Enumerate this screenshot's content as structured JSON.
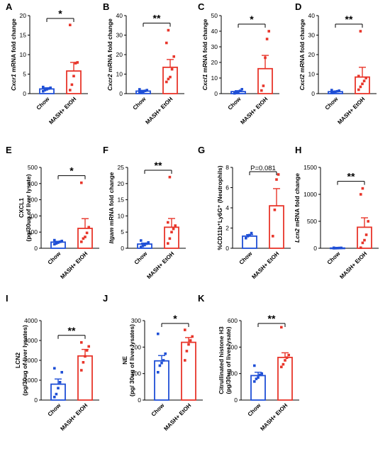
{
  "colors": {
    "chow": "#1f4fd6",
    "mash": "#e8352a",
    "axis": "#000000"
  },
  "categories": [
    "Chow",
    "MASH+ EtOH"
  ],
  "chart_data": [
    {
      "letter": "A",
      "type": "bar",
      "ylabel": {
        "gene": "Cxcr1",
        "rest": " mRNA fold change"
      },
      "ylim": [
        0,
        20
      ],
      "yticks": [
        "0",
        "5",
        "10",
        "15",
        "20"
      ],
      "sig": "*",
      "bars": [
        1.2,
        5.8
      ],
      "errors": [
        0.3,
        2.2
      ],
      "points": [
        [
          0.6,
          0.9,
          1.1,
          1.3,
          1.5,
          1.7
        ],
        [
          0.9,
          2.3,
          4.5,
          7.8,
          8.0,
          17.6
        ]
      ]
    },
    {
      "letter": "B",
      "type": "bar",
      "ylabel": {
        "gene": "Cxcr2",
        "rest": " mRNA fold change"
      },
      "ylim": [
        0,
        40
      ],
      "yticks": [
        "0",
        "10",
        "20",
        "30",
        "40"
      ],
      "sig": "**",
      "bars": [
        1.3,
        13.5
      ],
      "errors": [
        0.4,
        4.0
      ],
      "points": [
        [
          0.5,
          0.8,
          1.0,
          1.4,
          1.8,
          2.2
        ],
        [
          6.0,
          7.5,
          8.5,
          12.5,
          19.0,
          26.0,
          32.5
        ]
      ]
    },
    {
      "letter": "C",
      "type": "bar",
      "ylabel": {
        "gene": "Cxcl1",
        "rest": " mRNA fold change"
      },
      "ylim": [
        0,
        50
      ],
      "yticks": [
        "0",
        "10",
        "20",
        "30",
        "40",
        "50"
      ],
      "sig": "*",
      "bars": [
        1.3,
        16.0
      ],
      "errors": [
        0.6,
        8.5
      ],
      "points": [
        [
          0.2,
          0.5,
          1.0,
          1.8,
          2.8
        ],
        [
          2.0,
          5.0,
          23.0,
          35.0,
          40.0
        ]
      ]
    },
    {
      "letter": "D",
      "type": "bar",
      "ylabel": {
        "gene": "Cxcl2",
        "rest": " mRNA fold change"
      },
      "ylim": [
        0,
        40
      ],
      "yticks": [
        "0",
        "10",
        "20",
        "30",
        "40"
      ],
      "sig": "**",
      "bars": [
        1.0,
        8.5
      ],
      "errors": [
        0.3,
        5.0
      ],
      "points": [
        [
          0.4,
          0.7,
          1.0,
          1.2,
          1.5,
          1.8
        ],
        [
          2.0,
          3.5,
          5.0,
          6.5,
          8.0,
          9.0,
          32.0
        ]
      ]
    },
    {
      "letter": "E",
      "type": "bar",
      "ylabel": {
        "gene": "",
        "rest": "CXCL1",
        "rest2": "(pg/30ug of liver lysate)"
      },
      "ylim": [
        0,
        500
      ],
      "yticks": [
        "0",
        "100",
        "200",
        "300",
        "400",
        "500"
      ],
      "sig": "*",
      "bars": [
        38,
        123
      ],
      "errors": [
        5,
        60
      ],
      "points": [
        [
          25,
          30,
          35,
          40,
          45,
          50
        ],
        [
          40,
          60,
          70,
          95,
          130,
          405
        ]
      ]
    },
    {
      "letter": "F",
      "type": "bar",
      "ylabel": {
        "gene": "Itgam",
        "rest": " mRNA fold change"
      },
      "ylim": [
        0,
        25
      ],
      "yticks": [
        "0",
        "5",
        "10",
        "15",
        "20",
        "25"
      ],
      "sig": "**",
      "bars": [
        1.3,
        6.5
      ],
      "errors": [
        0.3,
        2.7
      ],
      "points": [
        [
          0.4,
          0.7,
          1.0,
          1.4,
          1.8,
          2.4
        ],
        [
          1.5,
          3.0,
          5.0,
          6.0,
          7.0,
          8.0,
          22.0
        ]
      ]
    },
    {
      "letter": "G",
      "type": "bar",
      "ylabel": {
        "gene": "",
        "rest": "%CD11b⁺Ly6G⁺ (Neutrophils)"
      },
      "ylim": [
        0,
        8
      ],
      "yticks": [
        "0",
        "2",
        "4",
        "6",
        "8"
      ],
      "sig": "P=0.081",
      "bars": [
        1.2,
        4.2
      ],
      "errors": [
        0.15,
        1.7
      ],
      "points": [
        [
          1.0,
          1.2,
          1.3,
          1.5
        ],
        [
          1.2,
          3.8,
          6.8,
          7.3
        ]
      ]
    },
    {
      "letter": "H",
      "type": "bar",
      "ylabel": {
        "gene": "Lcn2",
        "rest": " mRNA fold change"
      },
      "ylim": [
        0,
        1500
      ],
      "yticks": [
        "0",
        "500",
        "1000",
        "1500"
      ],
      "sig": "**",
      "bars": [
        5,
        390
      ],
      "errors": [
        3,
        175
      ],
      "points": [
        [
          1,
          2,
          3,
          5,
          7,
          9
        ],
        [
          10,
          100,
          150,
          250,
          500,
          1000,
          1110
        ]
      ]
    },
    {
      "letter": "I",
      "type": "bar",
      "ylabel": {
        "gene": "",
        "rest": "LCN2",
        "rest2": "(pg/30ug of liver lysates)"
      },
      "ylim": [
        0,
        4000
      ],
      "yticks": [
        "0",
        "1000",
        "2000",
        "3000",
        "4000"
      ],
      "sig": "**",
      "bars": [
        800,
        2220
      ],
      "errors": [
        260,
        330
      ],
      "points": [
        [
          150,
          300,
          600,
          900,
          1400,
          1600
        ],
        [
          1500,
          1900,
          2200,
          2500,
          2700,
          2900
        ]
      ]
    },
    {
      "letter": "J",
      "type": "bar",
      "ylabel": {
        "gene": "",
        "rest": "NE",
        "rest2": "(pg/ 30ug of liver lysates)"
      },
      "ylim": [
        0,
        300
      ],
      "yticks": [
        "0",
        "100",
        "200",
        "300"
      ],
      "sig": "*",
      "bars": [
        148,
        218
      ],
      "errors": [
        20,
        18
      ],
      "points": [
        [
          105,
          130,
          140,
          150,
          175,
          250
        ],
        [
          150,
          185,
          210,
          225,
          240,
          265
        ]
      ]
    },
    {
      "letter": "K",
      "type": "bar",
      "ylabel": {
        "gene": "",
        "rest": "Citrullinated histone H3",
        "rest2": "(pg/30ug of liver lysate)"
      },
      "ylim": [
        0,
        600
      ],
      "yticks": [
        "0",
        "200",
        "400",
        "600"
      ],
      "sig": "**",
      "bars": [
        185,
        322
      ],
      "errors": [
        25,
        35
      ],
      "points": [
        [
          140,
          160,
          170,
          190,
          200,
          260
        ],
        [
          250,
          270,
          300,
          320,
          340,
          550
        ]
      ]
    }
  ]
}
